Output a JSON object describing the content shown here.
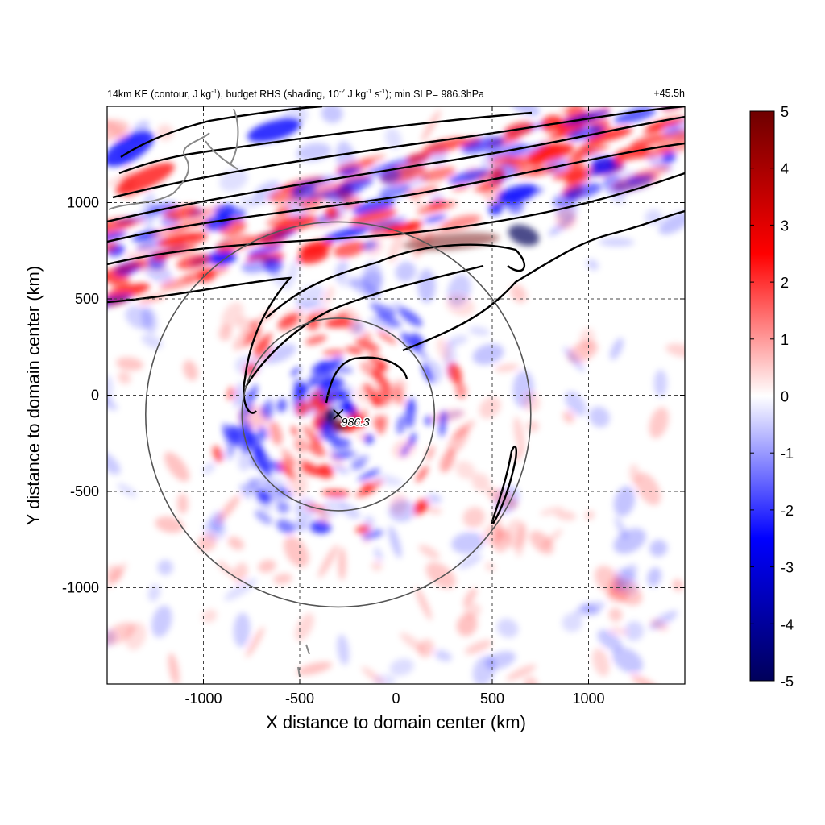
{
  "chart_data": {
    "type": "heatmap",
    "title_parts": [
      "14km KE (contour, J kg",
      "-1",
      "), budget RHS (shading, 10",
      "-2",
      " J kg",
      "-1",
      " s",
      "-1",
      "); min SLP= 986.3hPa"
    ],
    "time_label": "+45.5h",
    "xlabel": "X distance to domain center (km)",
    "ylabel": "Y distance to domain center (km)",
    "xlim": [
      -1500,
      1500
    ],
    "ylim": [
      -1500,
      1500
    ],
    "x_ticks": [
      -1000,
      -500,
      0,
      500,
      1000
    ],
    "x_tick_labels": [
      "-1000",
      "-500",
      "0",
      "500",
      "1000"
    ],
    "y_ticks": [
      -1000,
      -500,
      0,
      500,
      1000
    ],
    "y_tick_labels": [
      "-1000",
      "-500",
      "0",
      "500",
      "1000"
    ],
    "grid": true,
    "colorbar": {
      "range": [
        -5,
        5
      ],
      "ticks": [
        5,
        4,
        3,
        2,
        1,
        0,
        -1,
        -2,
        -3,
        -4,
        -5
      ],
      "tick_labels": [
        "5",
        "4",
        "3",
        "2",
        "1",
        "0",
        "-1",
        "-2",
        "-3",
        "-4",
        "-5"
      ],
      "colors": [
        "#00005a",
        "#0000ff",
        "#ffffff",
        "#ff0000",
        "#6e0000"
      ]
    },
    "storm_center": {
      "x": -300,
      "y": -100,
      "label": "986.3",
      "min_slp_hPa": 986.3
    },
    "range_rings_km": [
      500,
      1000
    ],
    "contour_color": "#000000",
    "coastline_color": "#888888"
  }
}
